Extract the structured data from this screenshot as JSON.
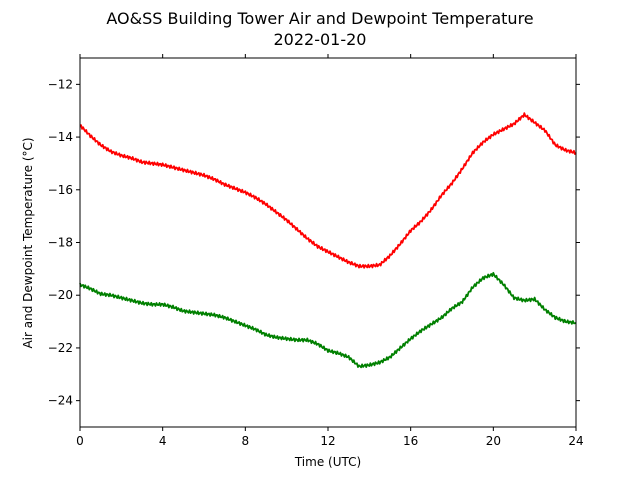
{
  "chart_data": {
    "type": "line",
    "title": "AO&SS Building Tower Air and Dewpoint Temperature",
    "subtitle": "2022-01-20",
    "xlabel": "Time (UTC)",
    "ylabel": "Air and Dewpoint Temperature (°C)",
    "xlim": [
      0,
      24
    ],
    "ylim": [
      -25,
      -11
    ],
    "xticks": [
      0,
      4,
      8,
      12,
      16,
      20,
      24
    ],
    "yticks": [
      -24,
      -22,
      -20,
      -18,
      -16,
      -14,
      -12
    ],
    "ytick_labels": [
      "−24",
      "−22",
      "−20",
      "−18",
      "−16",
      "−14",
      "−12"
    ],
    "grid": false,
    "legend": "none",
    "series": [
      {
        "color": "#ff0000",
        "x": [
          0,
          0.5,
          1,
          1.5,
          2,
          2.5,
          3,
          3.5,
          4,
          4.5,
          5,
          5.5,
          6,
          6.5,
          7,
          7.5,
          8,
          8.5,
          9,
          9.5,
          10,
          10.5,
          11,
          11.5,
          12,
          12.5,
          13,
          13.5,
          14,
          14.5,
          15,
          15.5,
          16,
          16.5,
          17,
          17.5,
          18,
          18.5,
          19,
          19.5,
          20,
          20.5,
          21,
          21.5,
          22,
          22.5,
          23,
          23.5,
          24
        ],
        "y": [
          -13.55,
          -13.95,
          -14.3,
          -14.55,
          -14.7,
          -14.8,
          -14.95,
          -15.0,
          -15.05,
          -15.15,
          -15.25,
          -15.35,
          -15.45,
          -15.6,
          -15.8,
          -15.95,
          -16.1,
          -16.3,
          -16.55,
          -16.85,
          -17.15,
          -17.5,
          -17.85,
          -18.15,
          -18.35,
          -18.55,
          -18.75,
          -18.9,
          -18.9,
          -18.85,
          -18.5,
          -18.05,
          -17.55,
          -17.2,
          -16.75,
          -16.2,
          -15.75,
          -15.2,
          -14.6,
          -14.2,
          -13.9,
          -13.7,
          -13.5,
          -13.15,
          -13.45,
          -13.75,
          -14.3,
          -14.5,
          -14.6
        ]
      },
      {
        "color": "#008000",
        "x": [
          0,
          0.5,
          1,
          1.5,
          2,
          2.5,
          3,
          3.5,
          4,
          4.5,
          5,
          5.5,
          6,
          6.5,
          7,
          7.5,
          8,
          8.5,
          9,
          9.5,
          10,
          10.5,
          11,
          11.5,
          12,
          12.5,
          13,
          13.5,
          14,
          14.5,
          15,
          15.5,
          16,
          16.5,
          17,
          17.5,
          18,
          18.5,
          19,
          19.5,
          20,
          20.5,
          21,
          21.5,
          22,
          22.5,
          23,
          23.5,
          24
        ],
        "y": [
          -19.6,
          -19.75,
          -19.95,
          -20.0,
          -20.1,
          -20.2,
          -20.3,
          -20.35,
          -20.35,
          -20.45,
          -20.6,
          -20.65,
          -20.7,
          -20.75,
          -20.85,
          -21.0,
          -21.15,
          -21.3,
          -21.5,
          -21.6,
          -21.65,
          -21.7,
          -21.7,
          -21.85,
          -22.1,
          -22.2,
          -22.35,
          -22.7,
          -22.65,
          -22.55,
          -22.35,
          -22.0,
          -21.65,
          -21.35,
          -21.1,
          -20.85,
          -20.5,
          -20.25,
          -19.7,
          -19.35,
          -19.2,
          -19.6,
          -20.1,
          -20.2,
          -20.15,
          -20.55,
          -20.85,
          -21.0,
          -21.05
        ]
      }
    ]
  }
}
